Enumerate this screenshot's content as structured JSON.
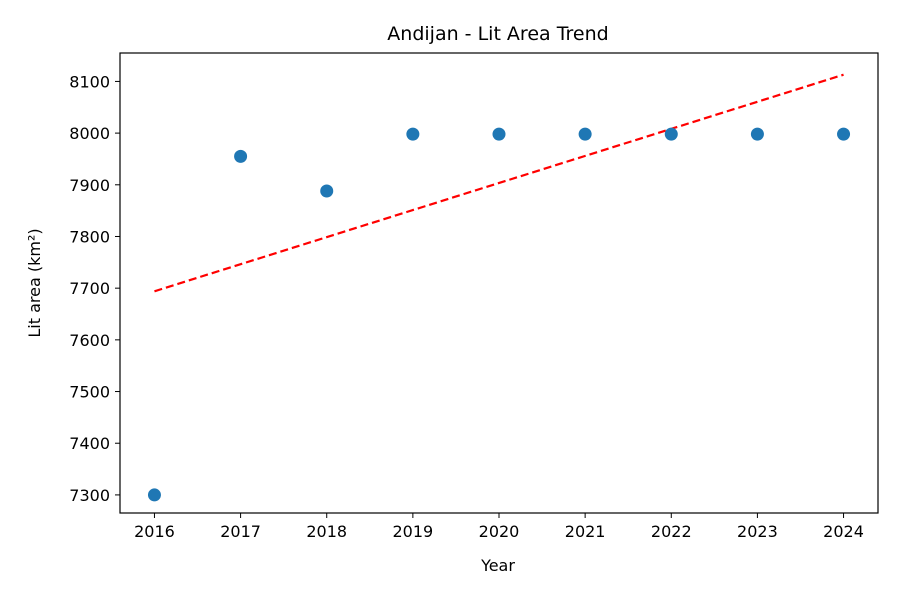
{
  "chart_data": {
    "type": "scatter",
    "title": "Andijan - Lit Area Trend",
    "xlabel": "Year",
    "ylabel": "Lit area (km²)",
    "x": [
      2016,
      2017,
      2018,
      2019,
      2020,
      2021,
      2022,
      2023,
      2024
    ],
    "y": [
      7300,
      7955,
      7888,
      7998,
      7998,
      7998,
      7998,
      7998,
      7998
    ],
    "x_ticks": [
      "2016",
      "2017",
      "2018",
      "2019",
      "2020",
      "2021",
      "2022",
      "2023",
      "2024"
    ],
    "y_ticks": [
      "7300",
      "7400",
      "7500",
      "7600",
      "7700",
      "7800",
      "7900",
      "8000",
      "8100"
    ],
    "xlim": [
      2015.6,
      2024.4
    ],
    "ylim": [
      7265,
      8155
    ],
    "trend_line": {
      "x": [
        2016,
        2024
      ],
      "y": [
        7694,
        8113
      ],
      "style": "dashed"
    },
    "grid": false,
    "colors": {
      "points": "#1f77b4",
      "trend": "#ff0000"
    }
  }
}
